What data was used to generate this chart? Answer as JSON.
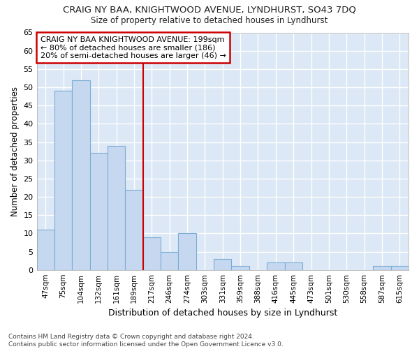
{
  "title1": "CRAIG NY BAA, KNIGHTWOOD AVENUE, LYNDHURST, SO43 7DQ",
  "title2": "Size of property relative to detached houses in Lyndhurst",
  "xlabel": "Distribution of detached houses by size in Lyndhurst",
  "ylabel": "Number of detached properties",
  "footnote1": "Contains HM Land Registry data © Crown copyright and database right 2024.",
  "footnote2": "Contains public sector information licensed under the Open Government Licence v3.0.",
  "bin_labels": [
    "47sqm",
    "75sqm",
    "104sqm",
    "132sqm",
    "161sqm",
    "189sqm",
    "217sqm",
    "246sqm",
    "274sqm",
    "303sqm",
    "331sqm",
    "359sqm",
    "388sqm",
    "416sqm",
    "445sqm",
    "473sqm",
    "501sqm",
    "530sqm",
    "558sqm",
    "587sqm",
    "615sqm"
  ],
  "values": [
    11,
    49,
    52,
    32,
    34,
    22,
    9,
    5,
    10,
    0,
    3,
    1,
    0,
    2,
    2,
    0,
    0,
    0,
    0,
    1,
    1
  ],
  "bar_color": "#c5d8f0",
  "bar_edge_color": "#7aadd4",
  "fig_bg_color": "#ffffff",
  "plot_bg_color": "#dce8f5",
  "grid_color": "#ffffff",
  "vline_x": 5.5,
  "vline_color": "#cc0000",
  "annotation_text": "CRAIG NY BAA KNIGHTWOOD AVENUE: 199sqm\n← 80% of detached houses are smaller (186)\n20% of semi-detached houses are larger (46) →",
  "annotation_bg_color": "#ffffff",
  "annotation_box_color": "#cc0000",
  "ylim": [
    0,
    65
  ],
  "yticks": [
    0,
    5,
    10,
    15,
    20,
    25,
    30,
    35,
    40,
    45,
    50,
    55,
    60,
    65
  ]
}
